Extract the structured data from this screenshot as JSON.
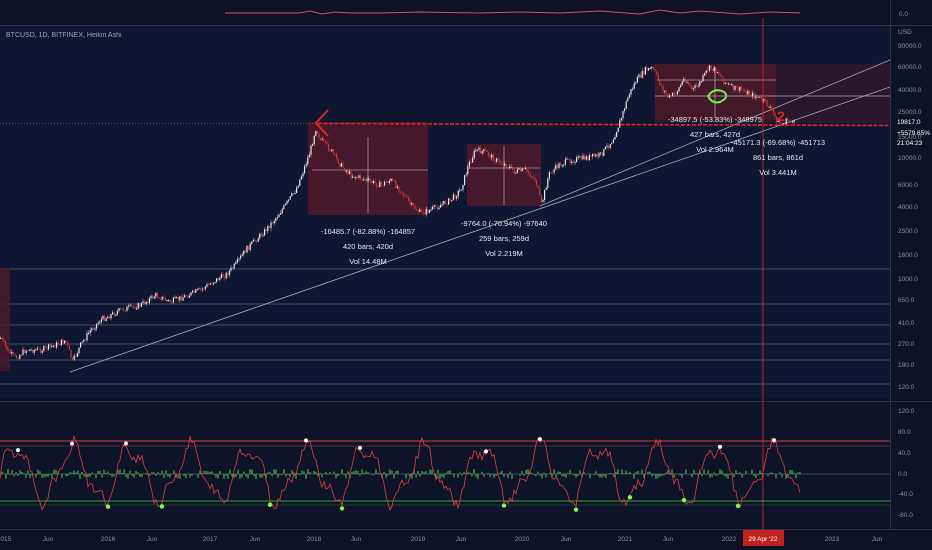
{
  "header": {
    "symbol_line": "BTCUSD, 1D, BITFINEX, Heikin Ashi"
  },
  "top_pane": {
    "right_value": "0.0"
  },
  "price_axis": {
    "currency": "USD",
    "ticks": [
      "90000.0",
      "60000.0",
      "40000.0",
      "25000.0",
      "15000.0",
      "10000.0",
      "6000.0",
      "4000.0",
      "2500.0",
      "1600.0",
      "1000.0",
      "650.0",
      "410.0",
      "270.0",
      "180.0",
      "120.0"
    ],
    "price_label": {
      "value": "19817.0",
      "change": "+5579.65%",
      "countdown": "21:04:23"
    }
  },
  "osc_axis": {
    "ticks": [
      "120.0",
      "80.0",
      "40.0",
      "0.0",
      "-40.0",
      "-80.0"
    ]
  },
  "time_axis": {
    "ticks": [
      "2015",
      "Jun",
      "2016",
      "Jun",
      "2017",
      "Jun",
      "2018",
      "Jun",
      "2019",
      "Jun",
      "2020",
      "Jun",
      "2021",
      "Jun",
      "2022",
      "Jun",
      "2023",
      "Jun"
    ],
    "highlight": "29 Apr '22"
  },
  "drawdowns": [
    {
      "line1": "-16485.7 (-82.88%) -164857",
      "line2": "420 bars, 420d",
      "line3": "Vol 14.48M"
    },
    {
      "line1": "-9764.0 (-70.94%) -97640",
      "line2": "259 bars, 259d",
      "line3": "Vol 2.219M"
    },
    {
      "line1": "-34897.5 (-53.83%) -348975",
      "line2": "427 bars, 427d",
      "line3": "Vol 2.964M"
    },
    {
      "line1": "-45171.3 (-69.68%) -451713",
      "line2": "861 bars, 861d",
      "line3": "Vol 3.441M"
    }
  ],
  "annotations": {
    "handwritten_mark": "2"
  },
  "colors": {
    "background": "#0d1325",
    "bull": "#e8e8ec",
    "bear": "#c83a3a",
    "zone": "#5a1a2a",
    "support": "#e02424",
    "cursor": "#d43030",
    "osc_line_up": "#ffffff",
    "osc_line_dn": "#e04040",
    "osc_hist": "#4caf50",
    "marker_green": "#7cfc50"
  }
}
